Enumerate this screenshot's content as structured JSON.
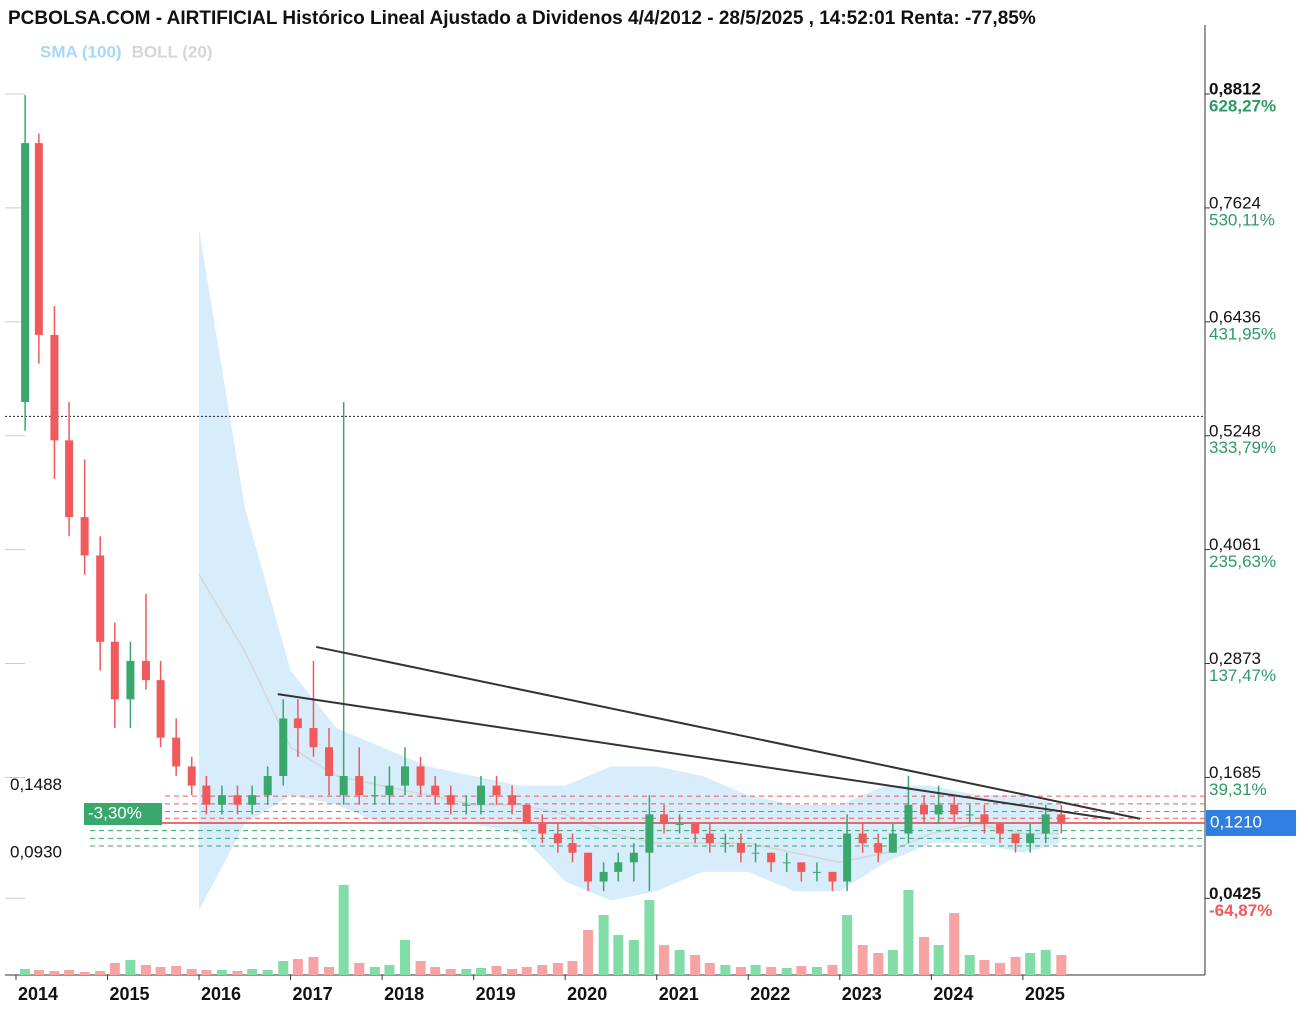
{
  "chart_data": {
    "type": "candlestick",
    "title": "PCBOLSA.COM - AIRTIFICIAL Histórico Lineal Ajustado a Dividenos 4/4/2012 - 28/5/2025 , 14:52:01 Renta: -77,85%",
    "xlim": [
      2013.88,
      2026.99
    ],
    "xticks": [
      2014,
      2015,
      2016,
      2017,
      2018,
      2019,
      2020,
      2021,
      2022,
      2023,
      2024,
      2025
    ],
    "ylim": [
      -0.0375,
      0.9375
    ],
    "yticks": [
      {
        "value": 0.8812,
        "label": "0,8812"
      },
      {
        "value": 0.7624,
        "label": "0,7624"
      },
      {
        "value": 0.6436,
        "label": "0,6436"
      },
      {
        "value": 0.5248,
        "label": "0,5248"
      },
      {
        "value": 0.4061,
        "label": "0,4061"
      },
      {
        "value": 0.2873,
        "label": "0,2873"
      },
      {
        "value": 0.1685,
        "label": "0,1685"
      },
      {
        "value": 0.0425,
        "label": "0,0425"
      }
    ],
    "y2lim": [
      -130.99,
      674.79
    ],
    "y2ticks": [
      {
        "value": 628.27,
        "label": "628,27%"
      },
      {
        "value": 530.11,
        "label": "530,11%"
      },
      {
        "value": 431.95,
        "label": "431,95%"
      },
      {
        "value": 333.79,
        "label": "333,79%"
      },
      {
        "value": 235.63,
        "label": "235,63%"
      },
      {
        "value": 137.47,
        "label": "137,47%"
      },
      {
        "value": 39.31,
        "label": "39,31%"
      },
      {
        "value": -64.87,
        "label": "-64,87%"
      }
    ],
    "up_color": "#3aa76d",
    "down_color": "#f05a5a",
    "volume_up_color": "#82dca8",
    "volume_down_color": "#f8a3a3",
    "volume_lim": [
      0,
      100
    ],
    "candles": {
      "x": [
        2014.1,
        2014.25,
        2014.42,
        2014.58,
        2014.75,
        2014.92,
        2015.08,
        2015.25,
        2015.42,
        2015.58,
        2015.75,
        2015.92,
        2016.08,
        2016.25,
        2016.42,
        2016.58,
        2016.75,
        2016.92,
        2017.08,
        2017.25,
        2017.42,
        2017.58,
        2017.75,
        2017.92,
        2018.08,
        2018.25,
        2018.42,
        2018.58,
        2018.75,
        2018.92,
        2019.08,
        2019.25,
        2019.42,
        2019.58,
        2019.75,
        2019.92,
        2020.08,
        2020.25,
        2020.42,
        2020.58,
        2020.75,
        2020.92,
        2021.08,
        2021.25,
        2021.42,
        2021.58,
        2021.75,
        2021.92,
        2022.08,
        2022.25,
        2022.42,
        2022.58,
        2022.75,
        2022.92,
        2023.08,
        2023.25,
        2023.42,
        2023.58,
        2023.75,
        2023.92,
        2024.08,
        2024.25,
        2024.42,
        2024.58,
        2024.75,
        2024.92,
        2025.08,
        2025.25,
        2025.42
      ],
      "open": [
        0.56,
        0.83,
        0.63,
        0.52,
        0.44,
        0.4,
        0.31,
        0.25,
        0.29,
        0.27,
        0.21,
        0.18,
        0.16,
        0.14,
        0.15,
        0.14,
        0.15,
        0.17,
        0.23,
        0.22,
        0.2,
        0.15,
        0.17,
        0.15,
        0.15,
        0.16,
        0.18,
        0.16,
        0.15,
        0.14,
        0.14,
        0.16,
        0.15,
        0.14,
        0.12,
        0.11,
        0.1,
        0.09,
        0.06,
        0.07,
        0.08,
        0.09,
        0.13,
        0.12,
        0.12,
        0.11,
        0.1,
        0.1,
        0.09,
        0.09,
        0.08,
        0.08,
        0.07,
        0.07,
        0.06,
        0.11,
        0.1,
        0.09,
        0.11,
        0.14,
        0.13,
        0.14,
        0.13,
        0.13,
        0.12,
        0.11,
        0.1,
        0.11,
        0.13
      ],
      "high": [
        0.88,
        0.84,
        0.66,
        0.56,
        0.5,
        0.42,
        0.33,
        0.31,
        0.36,
        0.29,
        0.23,
        0.19,
        0.17,
        0.16,
        0.16,
        0.16,
        0.18,
        0.25,
        0.25,
        0.29,
        0.22,
        0.56,
        0.2,
        0.17,
        0.18,
        0.2,
        0.19,
        0.17,
        0.16,
        0.15,
        0.17,
        0.17,
        0.16,
        0.14,
        0.13,
        0.12,
        0.11,
        0.09,
        0.08,
        0.09,
        0.1,
        0.15,
        0.14,
        0.13,
        0.12,
        0.12,
        0.11,
        0.11,
        0.1,
        0.09,
        0.09,
        0.08,
        0.08,
        0.07,
        0.13,
        0.12,
        0.11,
        0.12,
        0.17,
        0.15,
        0.16,
        0.15,
        0.14,
        0.14,
        0.12,
        0.11,
        0.12,
        0.14,
        0.14
      ],
      "low": [
        0.53,
        0.6,
        0.48,
        0.42,
        0.38,
        0.28,
        0.22,
        0.22,
        0.26,
        0.2,
        0.17,
        0.15,
        0.13,
        0.13,
        0.13,
        0.13,
        0.14,
        0.16,
        0.19,
        0.19,
        0.15,
        0.14,
        0.14,
        0.14,
        0.14,
        0.15,
        0.15,
        0.14,
        0.13,
        0.13,
        0.13,
        0.14,
        0.13,
        0.12,
        0.1,
        0.09,
        0.08,
        0.05,
        0.05,
        0.06,
        0.06,
        0.05,
        0.11,
        0.11,
        0.1,
        0.09,
        0.09,
        0.08,
        0.08,
        0.07,
        0.07,
        0.06,
        0.06,
        0.05,
        0.05,
        0.09,
        0.08,
        0.09,
        0.1,
        0.12,
        0.12,
        0.12,
        0.12,
        0.11,
        0.1,
        0.09,
        0.09,
        0.1,
        0.11
      ],
      "close": [
        0.83,
        0.63,
        0.52,
        0.44,
        0.4,
        0.31,
        0.25,
        0.29,
        0.27,
        0.21,
        0.18,
        0.16,
        0.14,
        0.15,
        0.14,
        0.15,
        0.17,
        0.23,
        0.22,
        0.2,
        0.17,
        0.17,
        0.15,
        0.15,
        0.16,
        0.18,
        0.16,
        0.15,
        0.14,
        0.14,
        0.16,
        0.15,
        0.14,
        0.12,
        0.11,
        0.1,
        0.09,
        0.06,
        0.07,
        0.08,
        0.09,
        0.13,
        0.12,
        0.12,
        0.11,
        0.1,
        0.1,
        0.09,
        0.09,
        0.08,
        0.08,
        0.07,
        0.07,
        0.06,
        0.11,
        0.1,
        0.09,
        0.11,
        0.14,
        0.13,
        0.14,
        0.13,
        0.13,
        0.12,
        0.11,
        0.1,
        0.11,
        0.13,
        0.121
      ],
      "volume": [
        6,
        5,
        4,
        5,
        3,
        4,
        12,
        15,
        10,
        8,
        9,
        6,
        5,
        5,
        4,
        6,
        5,
        14,
        16,
        18,
        8,
        90,
        12,
        8,
        10,
        35,
        14,
        8,
        6,
        6,
        7,
        9,
        6,
        8,
        10,
        12,
        14,
        45,
        60,
        40,
        35,
        75,
        30,
        25,
        20,
        12,
        10,
        8,
        10,
        8,
        7,
        9,
        8,
        10,
        60,
        30,
        22,
        25,
        85,
        38,
        30,
        62,
        20,
        15,
        12,
        18,
        22,
        25,
        20
      ]
    },
    "bands": {
      "x": [
        2016.0,
        2016.5,
        2017.0,
        2017.5,
        2018.0,
        2018.5,
        2019.0,
        2019.5,
        2020.0,
        2020.5,
        2021.0,
        2021.5,
        2022.0,
        2022.5,
        2023.0,
        2023.5,
        2024.0,
        2024.5,
        2025.0,
        2025.4
      ],
      "upper": [
        0.74,
        0.45,
        0.28,
        0.22,
        0.2,
        0.18,
        0.17,
        0.16,
        0.16,
        0.18,
        0.18,
        0.17,
        0.15,
        0.14,
        0.14,
        0.16,
        0.16,
        0.15,
        0.15,
        0.14
      ],
      "lower": [
        0.03,
        0.12,
        0.15,
        0.14,
        0.12,
        0.12,
        0.12,
        0.11,
        0.06,
        0.04,
        0.05,
        0.07,
        0.07,
        0.05,
        0.05,
        0.08,
        0.1,
        0.1,
        0.09,
        0.1
      ],
      "mid": [
        0.38,
        0.3,
        0.2,
        0.17,
        0.16,
        0.15,
        0.14,
        0.14,
        0.13,
        0.11,
        0.1,
        0.1,
        0.1,
        0.09,
        0.08,
        0.09,
        0.11,
        0.12,
        0.11,
        0.11
      ]
    },
    "legend": [
      {
        "name": "SMA (100)",
        "color": "#a6d8f7"
      },
      {
        "name": "BOLL (20)",
        "color": "#d6d6d6"
      }
    ],
    "trendlines": [
      {
        "x": [
          2017.28,
          2026.28
        ],
        "y": [
          0.3046,
          0.1254
        ]
      },
      {
        "x": [
          2016.86,
          2025.96
        ],
        "y": [
          0.2554,
          0.1254
        ]
      }
    ],
    "resistance_levels": [
      0.149,
      0.141,
      0.133,
      0.126
    ],
    "support_levels": [
      0.113,
      0.105,
      0.097
    ],
    "dotted_level": 0.545,
    "current_price": {
      "value": 0.121,
      "label": "0,1210"
    },
    "left_labels": [
      {
        "value": 0.1488,
        "label": "0,1488"
      },
      {
        "value": 0.093,
        "label": "0,0930"
      }
    ],
    "change_label": "-3,30%"
  }
}
